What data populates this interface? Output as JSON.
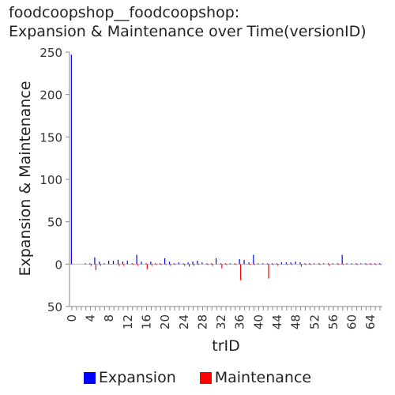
{
  "chart_data": {
    "type": "bar",
    "title_lines": [
      "foodcoopshop__foodcoopshop:",
      "Expansion & Maintenance over Time(versionID)"
    ],
    "xlabel": "trID",
    "ylabel": "Expansion & Maintenance",
    "ylim": [
      -50,
      250
    ],
    "y_ticks": [
      250,
      200,
      150,
      100,
      50,
      0,
      -50
    ],
    "y_tick_labels": [
      "250",
      "200",
      "150",
      "100",
      "50",
      "0",
      "50"
    ],
    "x_ticks": [
      0,
      4,
      8,
      12,
      16,
      20,
      24,
      28,
      32,
      36,
      40,
      44,
      48,
      52,
      56,
      60,
      64
    ],
    "xlim": [
      -0.5,
      66.5
    ],
    "legend_position": "bottom",
    "x": [
      0,
      1,
      2,
      3,
      4,
      5,
      6,
      7,
      8,
      9,
      10,
      11,
      12,
      13,
      14,
      15,
      16,
      17,
      18,
      19,
      20,
      21,
      22,
      23,
      24,
      25,
      26,
      27,
      28,
      29,
      30,
      31,
      32,
      33,
      34,
      35,
      36,
      37,
      38,
      39,
      40,
      41,
      42,
      43,
      44,
      45,
      46,
      47,
      48,
      49,
      50,
      51,
      52,
      53,
      54,
      55,
      56,
      57,
      58,
      59,
      60,
      61,
      62,
      63,
      64,
      65,
      66
    ],
    "series": [
      {
        "name": "Expansion",
        "color": "#0000ff",
        "values": [
          247,
          0,
          0,
          1,
          1,
          8,
          3,
          1,
          4,
          4,
          5,
          3,
          4,
          1,
          11,
          3,
          1,
          3,
          1,
          1,
          7,
          3,
          1,
          2,
          1,
          2,
          3,
          4,
          2,
          1,
          1,
          7,
          1,
          1,
          1,
          1,
          6,
          5,
          2,
          11,
          1,
          1,
          1,
          1,
          1,
          2,
          2,
          2,
          3,
          2,
          1,
          1,
          1,
          1,
          1,
          1,
          1,
          1,
          11,
          1,
          1,
          1,
          1,
          1,
          1,
          1,
          1
        ]
      },
      {
        "name": "Maintenance",
        "color": "#ff0000",
        "values": [
          0,
          0,
          0,
          0,
          -2,
          -7,
          -2,
          0,
          0,
          0,
          -2,
          -2,
          0,
          -1,
          -2,
          0,
          -6,
          -2,
          -1,
          -1,
          -1,
          -2,
          -1,
          0,
          -2,
          -3,
          -2,
          -1,
          0,
          -1,
          -2,
          0,
          -5,
          -1,
          0,
          -1,
          -19,
          0,
          -1,
          -1,
          0,
          0,
          -17,
          -1,
          -2,
          0,
          -1,
          -1,
          0,
          -3,
          -1,
          -1,
          0,
          -1,
          0,
          -2,
          0,
          -1,
          -1,
          0,
          0,
          -1,
          0,
          -1,
          -1,
          -1,
          -1
        ]
      }
    ]
  }
}
